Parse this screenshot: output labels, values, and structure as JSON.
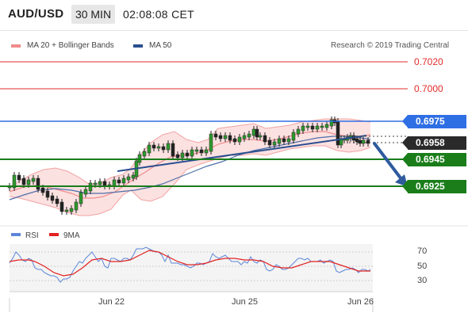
{
  "header": {
    "symbol": "AUD/USD",
    "timeframe": "30 MIN",
    "time": "02:08:08 CET"
  },
  "legend": {
    "ma20": "MA 20 + Bollinger Bands",
    "ma50": "MA 50",
    "copyright": "Research © 2019 Trading Central",
    "ma20_color": "#f08c8c",
    "ma50_color": "#2a4f8f"
  },
  "levels": {
    "r2": "0.7020",
    "r1": "0.7000",
    "pivot": "0.6975",
    "current": "0.6958",
    "s1": "0.6945",
    "s2": "0.6925",
    "resistance_color": "#e22b2b",
    "pivot_color": "#2f6fe4",
    "support_color": "#1a7d1a"
  },
  "rsi": {
    "label": "RSI",
    "ma_label": "9MA",
    "levels": [
      "70",
      "50",
      "30"
    ],
    "rsi_color": "#5b86d8",
    "ma_color": "#e32222"
  },
  "x_axis": {
    "labels": [
      "Jun 22",
      "Jun 25",
      "Jun 26"
    ]
  }
}
